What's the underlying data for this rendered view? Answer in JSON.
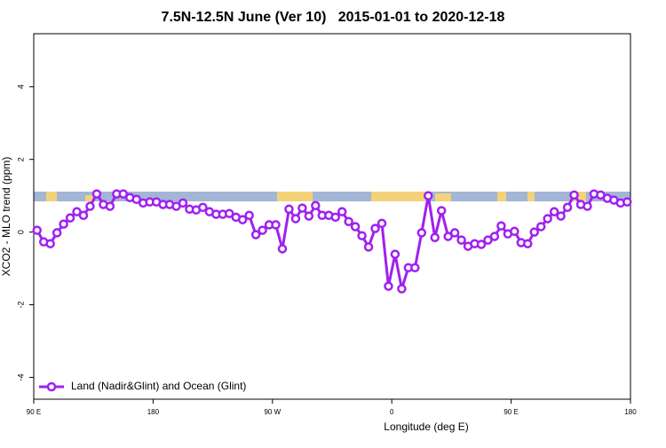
{
  "chart_data": {
    "type": "line",
    "title": "7.5N-12.5N June (Ver 10)   2015-01-01 to 2020-12-18",
    "xlabel": "Longitude (deg E)",
    "ylabel": "XCO2 - MLO trend (ppm)",
    "xlim": [
      90,
      540
    ],
    "ylim": [
      -4.6,
      5.46
    ],
    "xticks": [
      {
        "value": 90,
        "label": "90 E"
      },
      {
        "value": 180,
        "label": "180"
      },
      {
        "value": 270,
        "label": "90 W"
      },
      {
        "value": 360,
        "label": "0"
      },
      {
        "value": 450,
        "label": "90 E"
      },
      {
        "value": 540,
        "label": "180"
      }
    ],
    "yticks": [
      -4,
      -2,
      0,
      2,
      4
    ],
    "legend": "bottomleft",
    "x": [
      92.5,
      97.5,
      102.5,
      107.5,
      112.5,
      117.5,
      122.5,
      127.5,
      132.5,
      137.5,
      142.5,
      147.5,
      152.5,
      157.5,
      162.5,
      167.5,
      172.5,
      177.5,
      182.5,
      187.5,
      192.5,
      197.5,
      202.5,
      207.5,
      212.5,
      217.5,
      222.5,
      227.5,
      232.5,
      237.5,
      242.5,
      247.5,
      252.5,
      257.5,
      262.5,
      267.5,
      272.5,
      277.5,
      282.5,
      287.5,
      292.5,
      297.5,
      302.5,
      307.5,
      312.5,
      317.5,
      322.5,
      327.5,
      332.5,
      337.5,
      342.5,
      347.5,
      352.5,
      357.5,
      362.5,
      367.5,
      372.5,
      377.5,
      382.5,
      387.5,
      392.5,
      397.5,
      402.5,
      407.5,
      412.5,
      417.5,
      422.5,
      427.5,
      432.5,
      437.5,
      442.5,
      447.5,
      452.5,
      457.5,
      462.5,
      467.5,
      472.5,
      477.5,
      482.5,
      487.5,
      492.5,
      497.5,
      502.5,
      507.5,
      512.5,
      517.5,
      522.5,
      527.5,
      532.5,
      537.5
    ],
    "series": [
      {
        "name": "Land (Nadir&Glint) and Ocean (Glint)",
        "color": "#a020f0",
        "values": [
          0.05,
          -0.27,
          -0.32,
          -0.02,
          0.22,
          0.39,
          0.56,
          0.46,
          0.71,
          1.05,
          0.76,
          0.71,
          1.05,
          1.05,
          0.95,
          0.9,
          0.8,
          0.83,
          0.83,
          0.76,
          0.76,
          0.71,
          0.8,
          0.63,
          0.61,
          0.68,
          0.56,
          0.49,
          0.49,
          0.51,
          0.41,
          0.34,
          0.46,
          -0.07,
          0.05,
          0.2,
          0.2,
          -0.46,
          0.63,
          0.37,
          0.66,
          0.44,
          0.73,
          0.46,
          0.46,
          0.41,
          0.56,
          0.29,
          0.15,
          -0.1,
          -0.41,
          0.1,
          0.24,
          -1.49,
          -0.61,
          -1.56,
          -0.98,
          -0.98,
          -0.02,
          1.0,
          -0.15,
          0.59,
          -0.12,
          -0.02,
          -0.22,
          -0.39,
          -0.32,
          -0.34,
          -0.22,
          -0.12,
          0.17,
          -0.05,
          0.02,
          -0.29,
          -0.32,
          0.0,
          0.15,
          0.37,
          0.56,
          0.44,
          0.68,
          1.02,
          0.76,
          0.71,
          1.05,
          1.02,
          0.93,
          0.88,
          0.8,
          0.83
        ]
      }
    ]
  }
}
